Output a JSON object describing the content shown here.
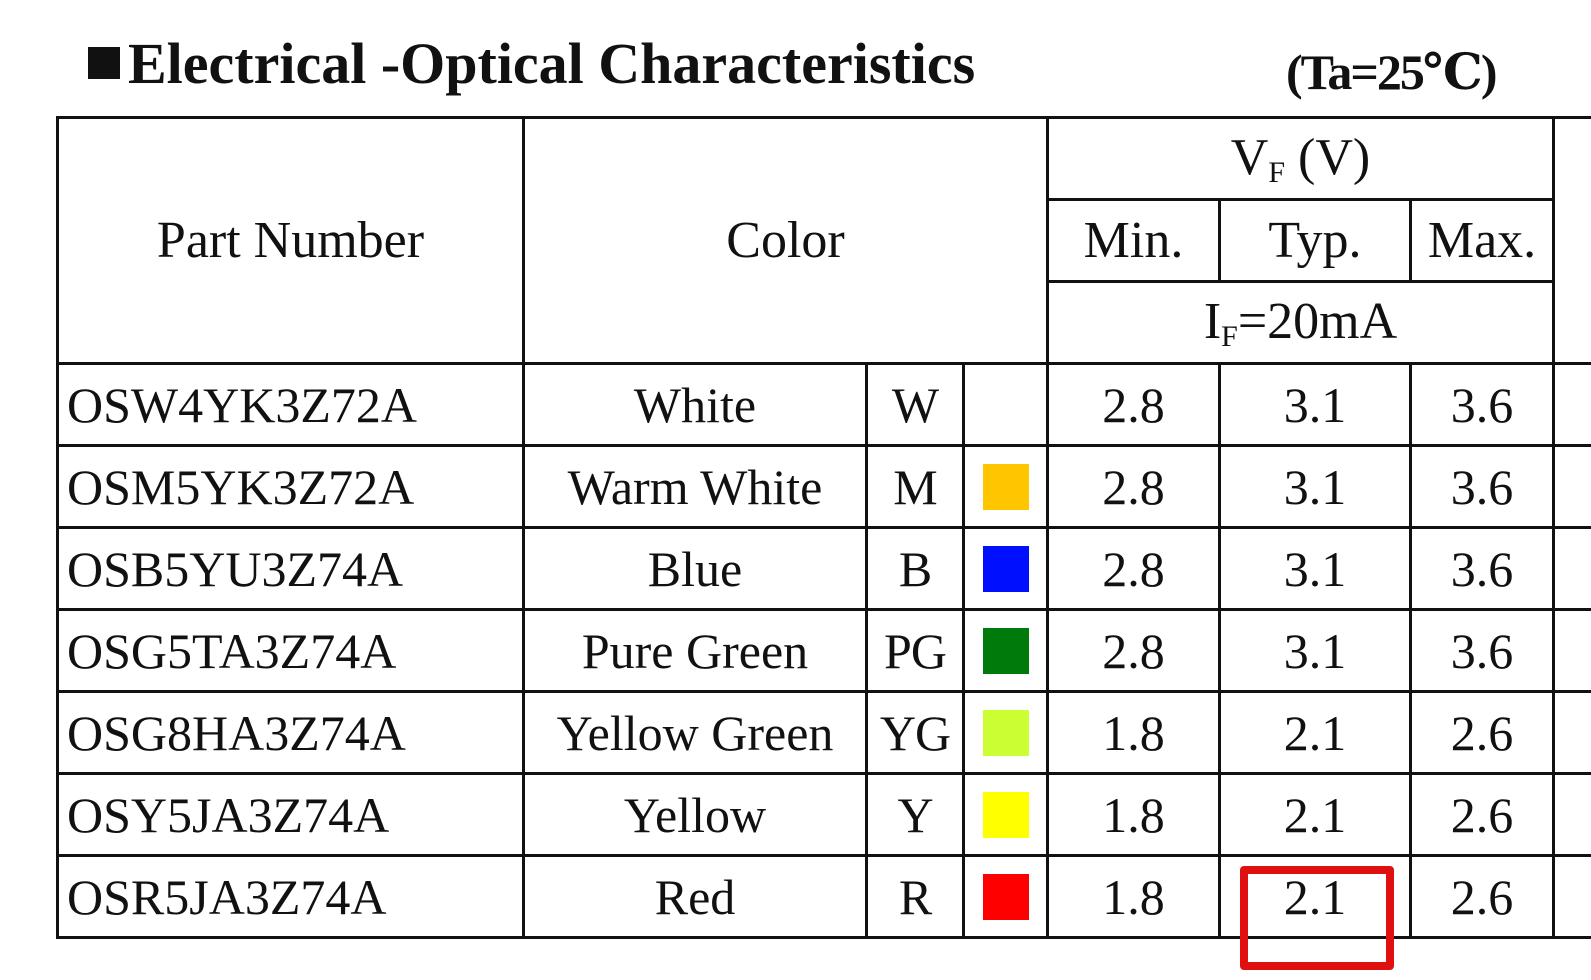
{
  "header": {
    "title": "Electrical -Optical Characteristics",
    "condition": "(Ta=25℃)"
  },
  "table": {
    "headers": {
      "part_number": "Part Number",
      "color": "Color",
      "vf_symbol": "V",
      "vf_sub": "F",
      "vf_unit": " (V)",
      "min": "Min.",
      "typ": "Typ.",
      "max": "Max.",
      "if_symbol": "I",
      "if_sub": "F",
      "if_value": "=20mA"
    },
    "rows": [
      {
        "part": "OSW4YK3Z72A",
        "color": "White",
        "code": "W",
        "swatch": "",
        "min": "2.8",
        "typ": "3.1",
        "max": "3.6"
      },
      {
        "part": "OSM5YK3Z72A",
        "color": "Warm White",
        "code": "M",
        "swatch": "#ffc600",
        "min": "2.8",
        "typ": "3.1",
        "max": "3.6"
      },
      {
        "part": "OSB5YU3Z74A",
        "color": "Blue",
        "code": "B",
        "swatch": "#0010ff",
        "min": "2.8",
        "typ": "3.1",
        "max": "3.6"
      },
      {
        "part": "OSG5TA3Z74A",
        "color": "Pure Green",
        "code": "PG",
        "swatch": "#007a0a",
        "min": "2.8",
        "typ": "3.1",
        "max": "3.6"
      },
      {
        "part": "OSG8HA3Z74A",
        "color": "Yellow Green",
        "code": "YG",
        "swatch": "#ccff33",
        "min": "1.8",
        "typ": "2.1",
        "max": "2.6"
      },
      {
        "part": "OSY5JA3Z74A",
        "color": "Yellow",
        "code": "Y",
        "swatch": "#ffff00",
        "min": "1.8",
        "typ": "2.1",
        "max": "2.6"
      },
      {
        "part": "OSR5JA3Z74A",
        "color": "Red",
        "code": "R",
        "swatch": "#ff0000",
        "min": "1.8",
        "typ": "2.1",
        "max": "2.6"
      }
    ]
  },
  "highlight": {
    "row_index": 6,
    "column": "typ",
    "color": "#e01010"
  }
}
